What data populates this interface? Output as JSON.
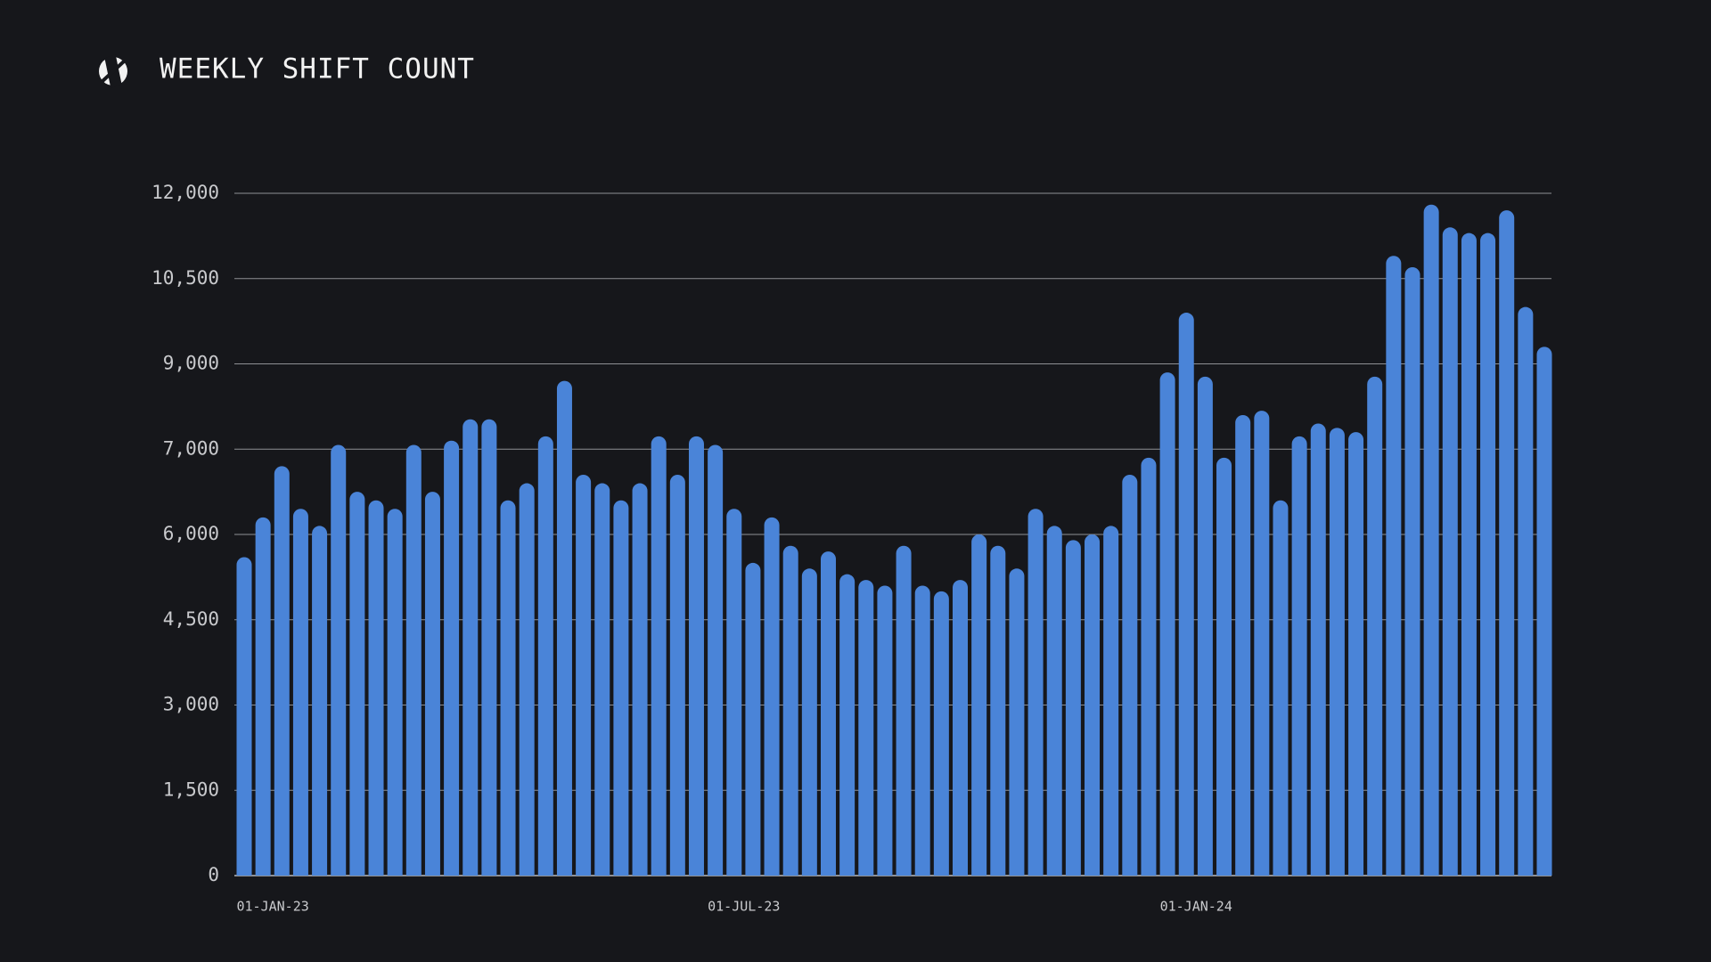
{
  "chart_data": {
    "type": "bar",
    "title": "WEEKLY SHIFT COUNT",
    "categories": [
      "01-JAN-23",
      null,
      null,
      null,
      null,
      null,
      null,
      null,
      null,
      null,
      null,
      null,
      null,
      null,
      null,
      null,
      null,
      null,
      null,
      null,
      null,
      null,
      null,
      null,
      null,
      "01-JUL-23",
      null,
      null,
      null,
      null,
      null,
      null,
      null,
      null,
      null,
      null,
      null,
      null,
      null,
      null,
      null,
      null,
      null,
      null,
      null,
      null,
      null,
      null,
      null,
      "01-JAN-24",
      null,
      null,
      null,
      null,
      null,
      null,
      null,
      null,
      null,
      null,
      null,
      null,
      null,
      null,
      null,
      null,
      null,
      null,
      null,
      null
    ],
    "values": [
      5600,
      6200,
      6800,
      6300,
      6100,
      7100,
      6500,
      6400,
      6300,
      7100,
      6500,
      7200,
      7700,
      7700,
      6400,
      6600,
      7300,
      8600,
      6700,
      6600,
      6400,
      6600,
      7300,
      6700,
      7300,
      7100,
      6300,
      5500,
      6200,
      5800,
      5400,
      5700,
      5300,
      5200,
      5100,
      5800,
      5100,
      5000,
      5200,
      6000,
      5800,
      5400,
      6300,
      6100,
      5900,
      6000,
      6100,
      6700,
      6900,
      8800,
      9900,
      8700,
      6900,
      7800,
      7900,
      6400,
      7300,
      7600,
      7500,
      7400,
      8700,
      10900,
      10700,
      11800,
      11400,
      11300,
      11300,
      11700,
      10000,
      9300
    ],
    "color": "#4a84d8",
    "ylim": [
      0,
      12000
    ],
    "yticks": [
      0,
      {
        "value": 1500,
        "label": "1,500"
      },
      {
        "value": 3000,
        "label": "3,000"
      },
      {
        "value": 4500,
        "label": "4,500"
      },
      {
        "value": 6000,
        "label": "6,000"
      },
      {
        "value": 7000,
        "label": "7,000"
      },
      {
        "value": 9000,
        "label": "9,000"
      },
      {
        "value": 10500,
        "label": "10,500"
      },
      {
        "value": 12000,
        "label": "12,000"
      }
    ],
    "grid": true
  }
}
